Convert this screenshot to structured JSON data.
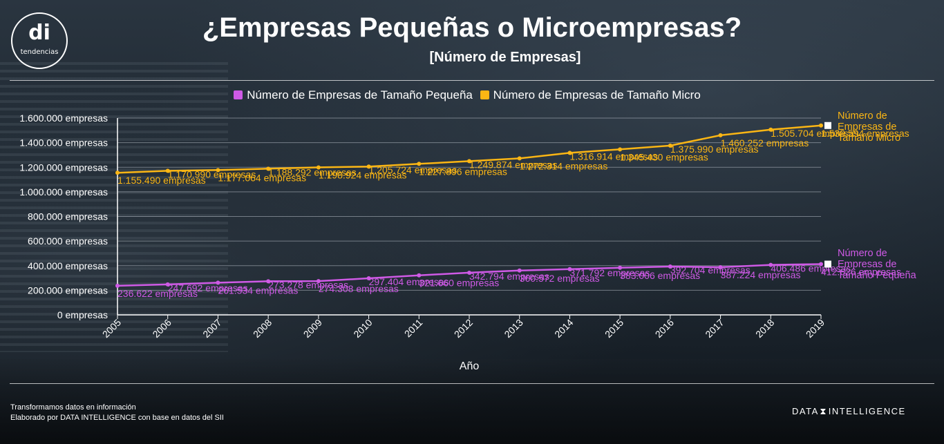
{
  "header": {
    "logo_mark": "di",
    "logo_text": "tendencias",
    "title": "¿Empresas Pequeñas o Microempresas?",
    "subtitle": "[Número de Empresas]"
  },
  "footer": {
    "line1": "Transformamos datos en información",
    "line2": "Elaborado por DATA INTELLIGENCE con base en datos del SII",
    "brand_left": "DATA",
    "brand_right": "INTELLIGENCE"
  },
  "colors": {
    "micro": "#fbb614",
    "pequena": "#cf5ae6",
    "grid": "#b7bec6"
  },
  "chart_data": {
    "type": "line",
    "title": "¿Empresas Pequeñas o Microempresas?",
    "subtitle": "[Número de Empresas]",
    "xlabel": "Año",
    "ylabel": "",
    "x": [
      "2005",
      "2006",
      "2007",
      "2008",
      "2009",
      "2010",
      "2011",
      "2012",
      "2013",
      "2014",
      "2015",
      "2016",
      "2017",
      "2018",
      "2019"
    ],
    "ylim": [
      0,
      1600000
    ],
    "yticks": [
      0,
      200000,
      400000,
      600000,
      800000,
      1000000,
      1200000,
      1400000,
      1600000
    ],
    "ytick_labels": [
      "0 empresas",
      "200.000 empresas",
      "400.000 empresas",
      "600.000 empresas",
      "800.000 empresas",
      "1.000.000 empresas",
      "1.200.000 empresas",
      "1.400.000 empresas",
      "1.600.000 empresas"
    ],
    "grid": true,
    "legend_position": "top",
    "series": [
      {
        "name": "Número de Empresas de Tamaño Pequeña",
        "end_label_lines": [
          "Número de",
          "Empresas de",
          "Tamaño Pequeña"
        ],
        "values": [
          236622,
          247692,
          261534,
          273278,
          274308,
          297404,
          321660,
          342794,
          360572,
          371792,
          383006,
          392704,
          387224,
          406486,
          412626
        ],
        "labels": [
          "236.622 empresas",
          "247.692 empresas",
          "261.534 empresas",
          "273.278 empresas",
          "274.308 empresas",
          "297.404 empresas",
          "321.660 empresas",
          "342.794 empresas",
          "360.572 empresas",
          "371.792 empresas",
          "383.006 empresas",
          "392.704 empresas",
          "387.224 empresas",
          "406.486 empresas",
          "412.626 empresas"
        ]
      },
      {
        "name": "Número de Empresas de Tamaño Micro",
        "end_label_lines": [
          "Número de",
          "Empresas de",
          "Tamaño Micro"
        ],
        "values": [
          1155490,
          1170990,
          1177064,
          1188292,
          1198924,
          1205724,
          1227896,
          1249874,
          1272314,
          1316914,
          1345430,
          1375990,
          1460252,
          1505704,
          1539594
        ],
        "labels": [
          "1.155.490 empresas",
          "1.170.990 empresas",
          "1.177.064 empresas",
          "1.188.292 empresas",
          "1.198.924 empresas",
          "1.205.724 empresas",
          "1.227.896 empresas",
          "1.249.874 empresas",
          "1.272.314 empresas",
          "1.316.914 empresas",
          "1.345.430 empresas",
          "1.375.990 empresas",
          "1.460.252 empresas",
          "1.505.704 empresas",
          "1.539.594 empresas"
        ]
      }
    ]
  }
}
